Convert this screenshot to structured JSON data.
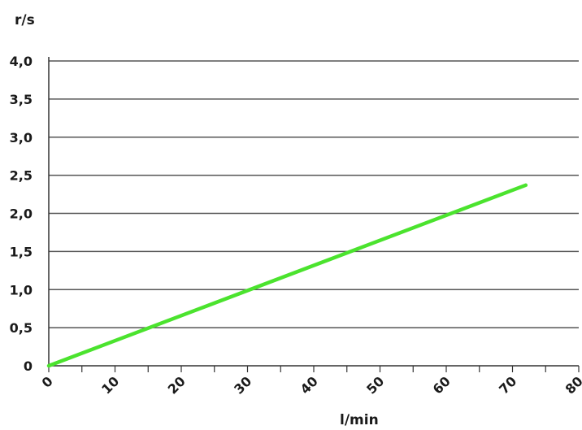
{
  "chart_data": {
    "type": "line",
    "title": "",
    "xlabel": "l/min",
    "ylabel": "r/s",
    "xlim": [
      0,
      80
    ],
    "ylim": [
      0,
      4.0
    ],
    "x_ticks": [
      0,
      10,
      20,
      30,
      40,
      50,
      60,
      70,
      80
    ],
    "x_tick_labels": [
      "0",
      "10",
      "20",
      "30",
      "40",
      "50",
      "60",
      "70",
      "80"
    ],
    "y_ticks": [
      0,
      0.5,
      1.0,
      1.5,
      2.0,
      2.5,
      3.0,
      3.5,
      4.0
    ],
    "y_tick_labels": [
      "0",
      "0,5",
      "1,0",
      "1,5",
      "2,0",
      "2,5",
      "3,0",
      "3,5",
      "4,0"
    ],
    "grid": "horizontal",
    "series": [
      {
        "color": "#4be32e",
        "x": [
          0,
          72
        ],
        "y": [
          0,
          2.37
        ]
      }
    ]
  }
}
